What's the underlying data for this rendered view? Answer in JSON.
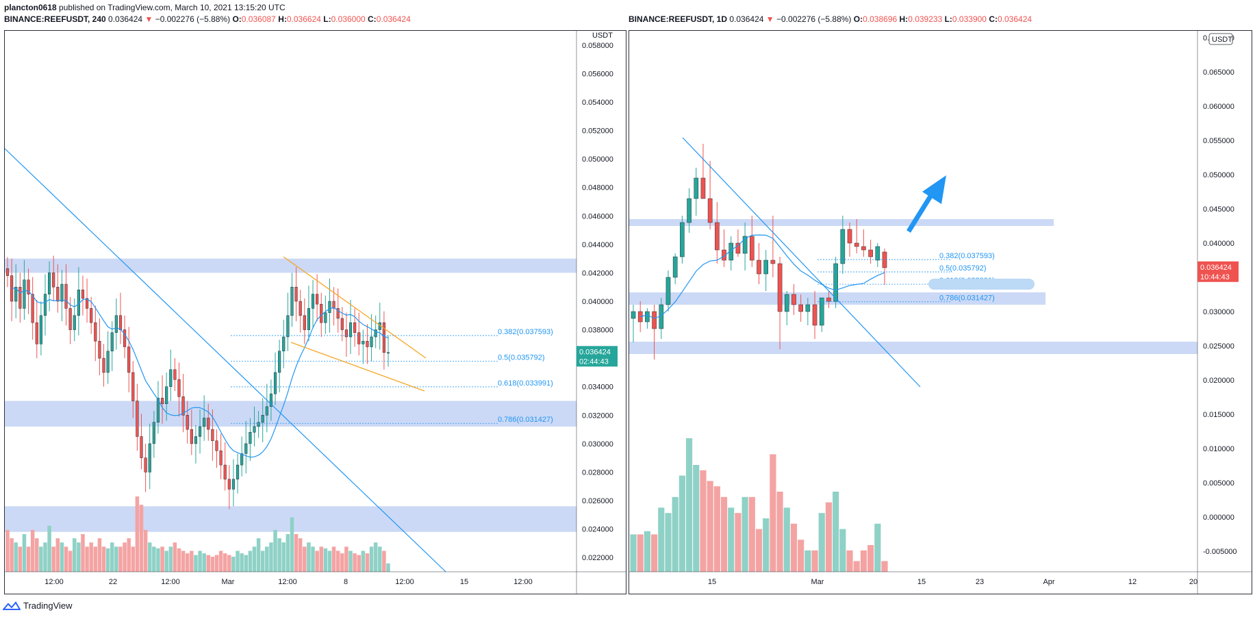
{
  "header": {
    "publisher": "plancton0618",
    "published_text": "published on TradingView.com, March 10, 2021 13:15:20 UTC",
    "left_symbol": "BINANCE:REEFUSDT, 240",
    "left_price": "0.036424",
    "left_arrow": "▼",
    "left_change": "−0.002276 (−5.88%)",
    "left_o_label": "O:",
    "left_o": "0.036087",
    "left_h_label": "H:",
    "left_h": "0.036624",
    "left_l_label": "L:",
    "left_l": "0.036000",
    "left_c_label": "C:",
    "left_c": "0.036424",
    "right_symbol": "BINANCE:REEFUSDT, 1D",
    "right_price": "0.036424",
    "right_arrow": "▼",
    "right_change": "−0.002276 (−5.88%)",
    "right_o_label": "O:",
    "right_o": "0.038696",
    "right_h_label": "H:",
    "right_h": "0.039233",
    "right_l_label": "L:",
    "right_l": "0.033900",
    "right_c_label": "C:",
    "right_c": "0.036424"
  },
  "footer": {
    "brand": "TradingView"
  },
  "colors": {
    "up": "#26a69a",
    "down": "#ef5350",
    "zone": "#c5d5f5",
    "trend": "#2196f3",
    "wedge": "#f5a623",
    "ma": "#2196f3",
    "axis": "#2a2e39",
    "vol_up": "#8fd1c6",
    "vol_down": "#f4a3a3"
  },
  "chart_data": [
    {
      "type": "candlestick",
      "title": "BINANCE:REEFUSDT, 240",
      "currency_label": "USDT",
      "y_ticks": [
        "0.058000",
        "0.056000",
        "0.054000",
        "0.052000",
        "0.050000",
        "0.048000",
        "0.046000",
        "0.044000",
        "0.042000",
        "0.040000",
        "0.038000",
        "0.036000",
        "0.034000",
        "0.032000",
        "0.030000",
        "0.028000",
        "0.026000",
        "0.024000",
        "0.022000"
      ],
      "ylim": [
        0.021,
        0.059
      ],
      "x_ticks": [
        "12:00",
        "22",
        "12:00",
        "Mar",
        "12:00",
        "8",
        "12:00",
        "15",
        "12:00"
      ],
      "price_label": "0.036424",
      "countdown_label": "02:44:43",
      "fib_levels": [
        {
          "label": "0.382(0.037593)",
          "value": 0.037593
        },
        {
          "label": "0.5(0.035792)",
          "value": 0.035792
        },
        {
          "label": "0.618(0.033991)",
          "value": 0.033991
        },
        {
          "label": "0.786(0.031427)",
          "value": 0.031427
        }
      ],
      "zones": [
        [
          0.042,
          0.043
        ],
        [
          0.0312,
          0.033
        ],
        [
          0.0238,
          0.0256
        ]
      ],
      "candles_close": [
        0.0418,
        0.04,
        0.041,
        0.0395,
        0.0415,
        0.0405,
        0.0385,
        0.037,
        0.039,
        0.0405,
        0.042,
        0.041,
        0.04,
        0.0412,
        0.0395,
        0.038,
        0.039,
        0.0408,
        0.0402,
        0.0395,
        0.0385,
        0.0372,
        0.036,
        0.035,
        0.0365,
        0.0378,
        0.039,
        0.038,
        0.0368,
        0.035,
        0.033,
        0.0305,
        0.029,
        0.028,
        0.03,
        0.0315,
        0.0332,
        0.0328,
        0.034,
        0.0352,
        0.0345,
        0.0333,
        0.032,
        0.031,
        0.03,
        0.0305,
        0.0312,
        0.0318,
        0.031,
        0.0302,
        0.0295,
        0.0285,
        0.0275,
        0.0268,
        0.0275,
        0.0285,
        0.0293,
        0.03,
        0.0308,
        0.0312,
        0.0315,
        0.032,
        0.0326,
        0.0335,
        0.035,
        0.0365,
        0.0375,
        0.039,
        0.041,
        0.04,
        0.039,
        0.038,
        0.0395,
        0.0405,
        0.0398,
        0.0385,
        0.0392,
        0.04,
        0.0395,
        0.0388,
        0.038,
        0.0375,
        0.0385,
        0.0378,
        0.037,
        0.0372,
        0.0368,
        0.0375,
        0.038,
        0.0385,
        0.0364,
        0.0364
      ],
      "volume_note": "relative volume bars",
      "volume": [
        0.5,
        0.4,
        0.35,
        0.3,
        0.45,
        0.3,
        0.5,
        0.4,
        0.3,
        0.35,
        0.55,
        0.3,
        0.4,
        0.35,
        0.3,
        0.25,
        0.4,
        0.35,
        0.45,
        0.3,
        0.35,
        0.3,
        0.4,
        0.3,
        0.28,
        0.35,
        0.3,
        0.3,
        0.35,
        0.4,
        0.3,
        0.9,
        0.8,
        0.5,
        0.35,
        0.3,
        0.28,
        0.3,
        0.25,
        0.3,
        0.35,
        0.28,
        0.25,
        0.22,
        0.25,
        0.2,
        0.25,
        0.22,
        0.2,
        0.18,
        0.2,
        0.25,
        0.22,
        0.2,
        0.18,
        0.25,
        0.22,
        0.2,
        0.25,
        0.3,
        0.4,
        0.25,
        0.3,
        0.35,
        0.5,
        0.4,
        0.35,
        0.45,
        0.65,
        0.45,
        0.4,
        0.3,
        0.35,
        0.3,
        0.25,
        0.3,
        0.28,
        0.25,
        0.3,
        0.25,
        0.22,
        0.3,
        0.25,
        0.22,
        0.2,
        0.25,
        0.22,
        0.3,
        0.35,
        0.3,
        0.25,
        0.1
      ]
    },
    {
      "type": "candlestick",
      "title": "BINANCE:REEFUSDT, 1D",
      "currency_label": "USDT",
      "y_ticks": [
        "0.070000",
        "0.065000",
        "0.060000",
        "0.055000",
        "0.050000",
        "0.045000",
        "0.040000",
        "0.035000",
        "0.030000",
        "0.025000",
        "0.020000",
        "0.015000",
        "0.010000",
        "0.005000",
        "0.000000",
        "-0.005000"
      ],
      "ylim": [
        -0.008,
        0.071
      ],
      "x_ticks": [
        "15",
        "Mar",
        "15",
        "23",
        "Apr",
        "12",
        "20"
      ],
      "price_label": "0.036424",
      "countdown_label": "10:44:43",
      "fib_levels": [
        {
          "label": "0.382(0.037593)",
          "value": 0.037593
        },
        {
          "label": "0.5(0.035792)",
          "value": 0.035792
        },
        {
          "label": "0.618(0.033991)",
          "value": 0.033991
        },
        {
          "label": "0.786(0.031427)",
          "value": 0.031427
        }
      ],
      "zones": [
        [
          0.0425,
          0.0435
        ],
        [
          0.031,
          0.0328
        ],
        [
          0.0238,
          0.0256
        ]
      ],
      "candles": [
        {
          "o": 0.029,
          "h": 0.031,
          "l": 0.0255,
          "c": 0.03
        },
        {
          "o": 0.03,
          "h": 0.0315,
          "l": 0.027,
          "c": 0.0285
        },
        {
          "o": 0.0285,
          "h": 0.0305,
          "l": 0.0275,
          "c": 0.03
        },
        {
          "o": 0.03,
          "h": 0.031,
          "l": 0.023,
          "c": 0.0275
        },
        {
          "o": 0.0275,
          "h": 0.032,
          "l": 0.026,
          "c": 0.031
        },
        {
          "o": 0.031,
          "h": 0.036,
          "l": 0.03,
          "c": 0.035
        },
        {
          "o": 0.035,
          "h": 0.0385,
          "l": 0.034,
          "c": 0.038
        },
        {
          "o": 0.038,
          "h": 0.044,
          "l": 0.037,
          "c": 0.043
        },
        {
          "o": 0.043,
          "h": 0.048,
          "l": 0.0415,
          "c": 0.0465
        },
        {
          "o": 0.0465,
          "h": 0.051,
          "l": 0.044,
          "c": 0.0495
        },
        {
          "o": 0.0495,
          "h": 0.0545,
          "l": 0.047,
          "c": 0.0465
        },
        {
          "o": 0.0465,
          "h": 0.052,
          "l": 0.042,
          "c": 0.043
        },
        {
          "o": 0.043,
          "h": 0.046,
          "l": 0.037,
          "c": 0.039
        },
        {
          "o": 0.039,
          "h": 0.042,
          "l": 0.0365,
          "c": 0.0375
        },
        {
          "o": 0.0375,
          "h": 0.041,
          "l": 0.036,
          "c": 0.04
        },
        {
          "o": 0.04,
          "h": 0.042,
          "l": 0.038,
          "c": 0.0385
        },
        {
          "o": 0.0385,
          "h": 0.043,
          "l": 0.036,
          "c": 0.041
        },
        {
          "o": 0.041,
          "h": 0.044,
          "l": 0.0365,
          "c": 0.0375
        },
        {
          "o": 0.0375,
          "h": 0.04,
          "l": 0.034,
          "c": 0.0355
        },
        {
          "o": 0.0355,
          "h": 0.039,
          "l": 0.033,
          "c": 0.0375
        },
        {
          "o": 0.0375,
          "h": 0.044,
          "l": 0.035,
          "c": 0.037
        },
        {
          "o": 0.037,
          "h": 0.038,
          "l": 0.0245,
          "c": 0.03
        },
        {
          "o": 0.03,
          "h": 0.033,
          "l": 0.028,
          "c": 0.0325
        },
        {
          "o": 0.0325,
          "h": 0.034,
          "l": 0.0295,
          "c": 0.031
        },
        {
          "o": 0.031,
          "h": 0.0325,
          "l": 0.0285,
          "c": 0.03
        },
        {
          "o": 0.03,
          "h": 0.032,
          "l": 0.028,
          "c": 0.031
        },
        {
          "o": 0.031,
          "h": 0.033,
          "l": 0.026,
          "c": 0.028
        },
        {
          "o": 0.028,
          "h": 0.032,
          "l": 0.027,
          "c": 0.032
        },
        {
          "o": 0.032,
          "h": 0.033,
          "l": 0.0305,
          "c": 0.0315
        },
        {
          "o": 0.0315,
          "h": 0.038,
          "l": 0.0305,
          "c": 0.037
        },
        {
          "o": 0.037,
          "h": 0.044,
          "l": 0.0355,
          "c": 0.042
        },
        {
          "o": 0.042,
          "h": 0.043,
          "l": 0.038,
          "c": 0.04
        },
        {
          "o": 0.04,
          "h": 0.0435,
          "l": 0.0385,
          "c": 0.0395
        },
        {
          "o": 0.0395,
          "h": 0.042,
          "l": 0.038,
          "c": 0.039
        },
        {
          "o": 0.039,
          "h": 0.0405,
          "l": 0.037,
          "c": 0.038
        },
        {
          "o": 0.0375,
          "h": 0.04,
          "l": 0.0365,
          "c": 0.0395
        },
        {
          "o": 0.0387,
          "h": 0.0392,
          "l": 0.0339,
          "c": 0.0364
        }
      ],
      "volume": [
        0.0035,
        0.0035,
        0.0038,
        0.0035,
        0.006,
        0.0055,
        0.007,
        0.009,
        0.0125,
        0.01,
        0.0095,
        0.0085,
        0.008,
        0.007,
        0.006,
        0.0055,
        0.007,
        0.007,
        0.004,
        0.005,
        0.011,
        0.0075,
        0.006,
        0.0045,
        0.003,
        0.002,
        0.002,
        0.0055,
        0.0065,
        0.0075,
        0.004,
        0.002,
        0.001,
        0.002,
        0.0025,
        0.0045,
        0.001
      ]
    }
  ],
  "right_axis_badge": "USDT"
}
